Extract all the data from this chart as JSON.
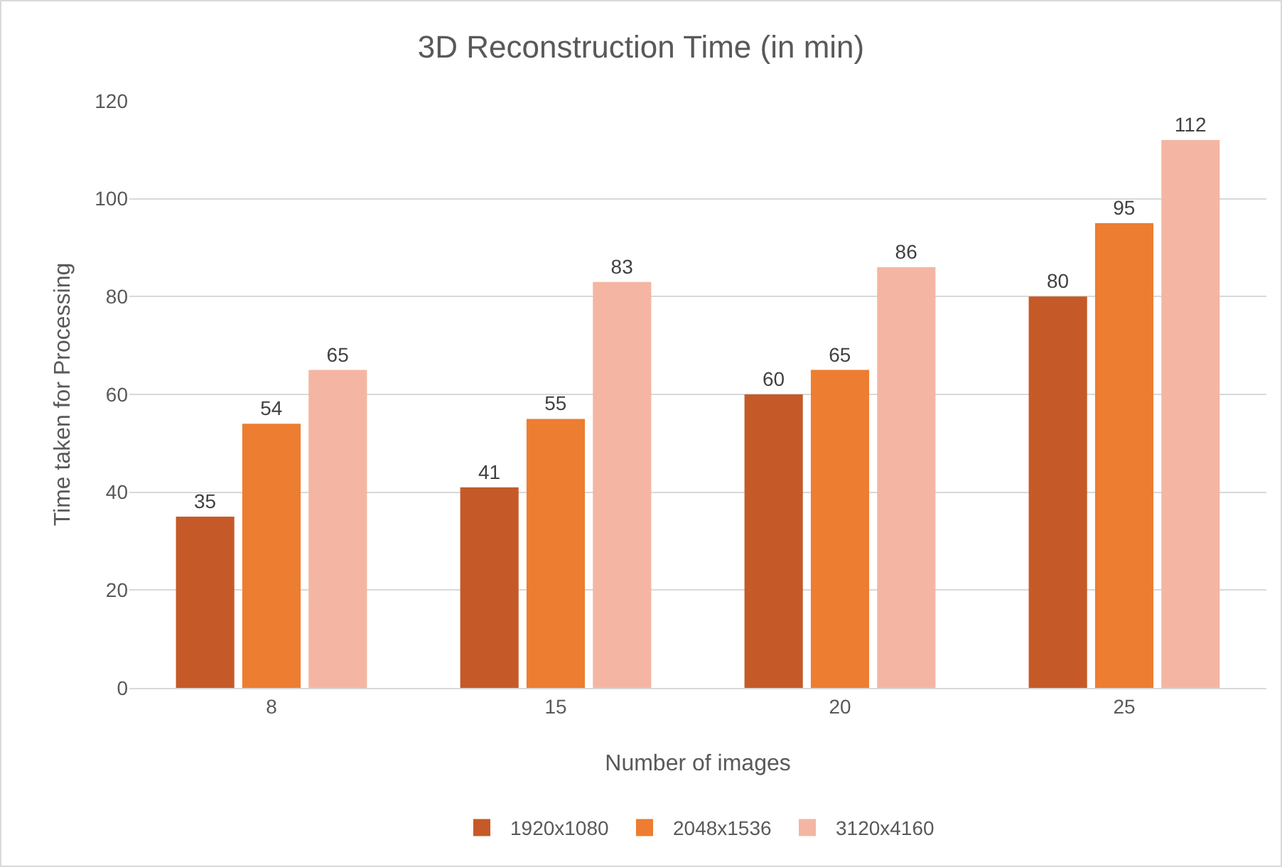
{
  "chart_data": {
    "type": "bar",
    "title": "3D Reconstruction Time (in min)",
    "xlabel": "Number of images",
    "ylabel": "Time taken for Processing",
    "categories": [
      "8",
      "15",
      "20",
      "25"
    ],
    "series": [
      {
        "name": "1920x1080",
        "color": "#c55a28",
        "values": [
          35,
          41,
          60,
          80
        ]
      },
      {
        "name": "2048x1536",
        "color": "#ed7d31",
        "values": [
          54,
          55,
          65,
          95
        ]
      },
      {
        "name": "3120x4160",
        "color": "#f4b6a2",
        "values": [
          65,
          83,
          86,
          112
        ]
      }
    ],
    "ylim": [
      0,
      120
    ],
    "yticks": [
      0,
      20,
      40,
      60,
      80,
      100,
      120
    ],
    "grid": "y",
    "legend": "bottom",
    "data_labels": true
  }
}
